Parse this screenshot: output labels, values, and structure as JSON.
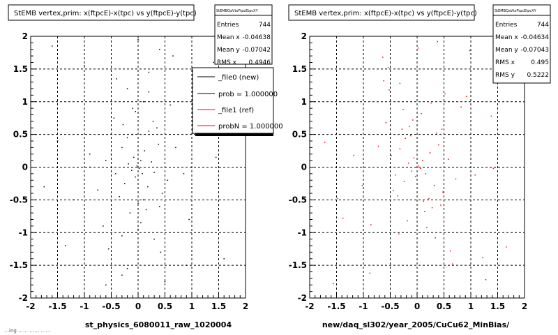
{
  "colors": {
    "background": "#ffffff",
    "frame": "#000000",
    "grid": "#000000",
    "new_marker": "#000000",
    "ref_marker": "#ff0000",
    "shadow": "#000000"
  },
  "footer_fragment": "…ing …… …… ……",
  "panels": [
    {
      "title": "StEMB  vertex,prim: x(ftpcE)-x(tpc) vs y(ftpcE)-y(tpc)",
      "xlabel": "st_physics_6080011_raw_1020004",
      "stats": {
        "name": "StEMBQaVtxFtpcEtpcXY",
        "rows": [
          {
            "label": "Entries",
            "value": "744"
          },
          {
            "label": "Mean x",
            "value": "-0.04638"
          },
          {
            "label": "Mean y",
            "value": "-0.07042"
          },
          {
            "label": "RMS x",
            "value": "0.4946"
          }
        ]
      },
      "legend": {
        "entries": [
          {
            "label": "_file0 (new)",
            "color": "#000000"
          },
          {
            "label": "prob = 1.000000",
            "color": "#000000"
          },
          {
            "label": "_file1 (ref)",
            "color": "#ff0000"
          },
          {
            "label": "probN = 1.000000",
            "color": "#ff0000"
          }
        ]
      }
    },
    {
      "title": "StEMB  vertex,prim: x(ftpcE)-x(tpc) vs y(ftpcE)-y(tpc)",
      "xlabel": "new/daq_sl302/year_2005/CuCu62_MinBias/",
      "stats": {
        "name": "StEMBQaVtxFtpcEtpcXY",
        "rows": [
          {
            "label": "Entries",
            "value": "744"
          },
          {
            "label": "Mean x",
            "value": "-0.04634"
          },
          {
            "label": "Mean y",
            "value": "-0.07043"
          },
          {
            "label": "RMS x",
            "value": "0.495"
          },
          {
            "label": "RMS y",
            "value": "0.5222"
          }
        ]
      }
    }
  ],
  "chart_data": [
    {
      "type": "scatter",
      "title": "StEMB  vertex,prim: x(ftpcE)-x(tpc) vs y(ftpcE)-y(tpc)",
      "xlabel": "st_physics_6080011_raw_1020004",
      "ylabel": "",
      "xlim": [
        -2,
        2
      ],
      "ylim": [
        -2,
        2
      ],
      "xticks": [
        -2,
        -1.5,
        -1,
        -0.5,
        0,
        0.5,
        1,
        1.5,
        2
      ],
      "yticks": [
        -2,
        -1.5,
        -1,
        -0.5,
        0,
        0.5,
        1,
        1.5,
        2
      ],
      "xtick_labels": [
        "-2",
        "-1.5",
        "-1",
        "-0.5",
        "0",
        "0.5",
        "1",
        "1.5",
        "2"
      ],
      "ytick_labels": [
        "-2",
        "-1.5",
        "-1",
        "-0.5",
        "0",
        "0.5",
        "1",
        "1.5",
        "2"
      ],
      "grid": true,
      "legend_position": "top-right",
      "series": [
        {
          "name": "_file0 (new)",
          "color": "#000000",
          "x": [
            -0.5,
            -0.42,
            -0.3,
            -0.25,
            -0.18,
            -0.12,
            -0.08,
            -0.05,
            -0.02,
            0.02,
            0.05,
            0.08,
            0.12,
            0.18,
            0.25,
            0.3,
            0.38,
            0.45,
            -0.35,
            -0.2,
            -0.1,
            0.0,
            0.1,
            0.2,
            0.35,
            -0.28,
            -0.15,
            0.15,
            0.28,
            -0.6,
            0.55,
            0.7,
            -0.75,
            0.4,
            -0.45,
            -0.05,
            0.05,
            0.0,
            -0.1,
            0.1,
            -0.3,
            0.3,
            -0.2,
            0.2,
            -0.4,
            0.42,
            0.6,
            -0.65,
            0.85,
            -0.9,
            1.1,
            -1.2,
            1.4,
            -1.5,
            1.6,
            -1.75,
            1.2,
            -1.0,
            0.9,
            -0.55,
            0.65,
            1.7,
            -0.6,
            0.5,
            -1.6,
            1.3,
            0.0,
            -0.3,
            0.4,
            -0.9,
            0.95,
            1.45,
            -1.35,
            0.2,
            -0.2
          ],
          "y": [
            0.2,
            -0.1,
            0.3,
            -0.25,
            0.05,
            -0.05,
            0.15,
            -0.15,
            0.02,
            -0.02,
            0.1,
            -0.1,
            0.25,
            -0.3,
            0.08,
            -0.08,
            0.35,
            -0.4,
            -0.45,
            0.45,
            0.5,
            -0.55,
            -0.5,
            0.55,
            0.6,
            0.65,
            -0.7,
            -0.65,
            0.7,
            0.1,
            -0.2,
            0.3,
            -0.35,
            -0.6,
            0.75,
            0.85,
            -0.85,
            -0.95,
            0.9,
            1.0,
            -1.05,
            -1.1,
            1.2,
            1.15,
            1.35,
            -1.3,
            0.95,
            -0.9,
            -0.1,
            0.2,
            0.8,
            -0.5,
            1.6,
            0.4,
            -1.4,
            -0.3,
            1.1,
            1.55,
            -1.5,
            -1.25,
            1.7,
            0.6,
            -1.8,
            -1.75,
            1.85,
            1.3,
            1.95,
            -1.65,
            1.8,
            0.0,
            -0.8,
            0.15,
            -1.2,
            1.45,
            -1.55
          ]
        }
      ]
    },
    {
      "type": "scatter",
      "title": "StEMB  vertex,prim: x(ftpcE)-x(tpc) vs y(ftpcE)-y(tpc)",
      "xlabel": "new/daq_sl302/year_2005/CuCu62_MinBias/",
      "ylabel": "",
      "xlim": [
        -2,
        2
      ],
      "ylim": [
        -2,
        2
      ],
      "xticks": [
        -2,
        -1.5,
        -1,
        -0.5,
        0,
        0.5,
        1,
        1.5,
        2
      ],
      "yticks": [
        -2,
        -1.5,
        -1,
        -0.5,
        0,
        0.5,
        1,
        1.5,
        2
      ],
      "xtick_labels": [
        "-2",
        "-1.5",
        "-1",
        "-0.5",
        "0",
        "0.5",
        "1",
        "1.5",
        "2"
      ],
      "ytick_labels": [
        "-2",
        "-1.5",
        "-1",
        "-0.5",
        "0",
        "0.5",
        "1",
        "1.5",
        "2"
      ],
      "grid": true,
      "series": [
        {
          "name": "_file1 (ref)",
          "color": "#ff0000",
          "x": [
            -0.48,
            -0.4,
            -0.32,
            -0.24,
            -0.16,
            -0.1,
            -0.06,
            -0.03,
            0.0,
            0.03,
            0.06,
            0.1,
            0.16,
            0.24,
            0.32,
            0.4,
            0.48,
            -0.36,
            -0.22,
            -0.12,
            0.12,
            0.22,
            0.36,
            -0.28,
            -0.14,
            0.14,
            0.28,
            -0.58,
            0.58,
            0.72,
            -0.72,
            -0.44,
            0.44,
            -0.08,
            0.08,
            -0.18,
            0.18,
            -0.26,
            0.26,
            -0.34,
            0.34,
            -0.52,
            0.52,
            -0.62,
            0.62,
            0.82,
            -0.86,
            1.08,
            -1.18,
            1.38,
            -1.48,
            1.58,
            -1.72,
            1.22,
            -1.02,
            0.92,
            -0.54,
            0.66,
            1.66,
            -0.64,
            0.46,
            -1.56,
            1.28,
            0.02,
            -0.32,
            0.38,
            -0.88,
            0.98,
            1.42,
            -1.38
          ],
          "y": [
            0.18,
            -0.12,
            0.28,
            -0.22,
            0.06,
            -0.06,
            0.14,
            -0.14,
            0.0,
            0.02,
            -0.02,
            0.1,
            -0.1,
            0.22,
            -0.28,
            0.34,
            -0.38,
            -0.44,
            0.44,
            0.48,
            -0.52,
            -0.48,
            0.52,
            0.58,
            0.62,
            -0.68,
            -0.62,
            0.68,
            0.12,
            -0.18,
            0.32,
            -0.36,
            -0.58,
            0.72,
            0.82,
            -0.82,
            -0.92,
            0.88,
            0.98,
            -1.02,
            -1.08,
            1.18,
            1.12,
            1.32,
            -1.28,
            0.92,
            -0.88,
            -0.12,
            0.18,
            0.78,
            -0.48,
            1.58,
            0.38,
            -1.38,
            -0.28,
            1.08,
            1.52,
            -1.48,
            -1.22,
            1.68,
            0.58,
            -1.78,
            -1.72,
            1.82,
            1.28,
            1.92,
            -1.62,
            1.78,
            -0.02,
            -0.78
          ]
        }
      ]
    }
  ]
}
